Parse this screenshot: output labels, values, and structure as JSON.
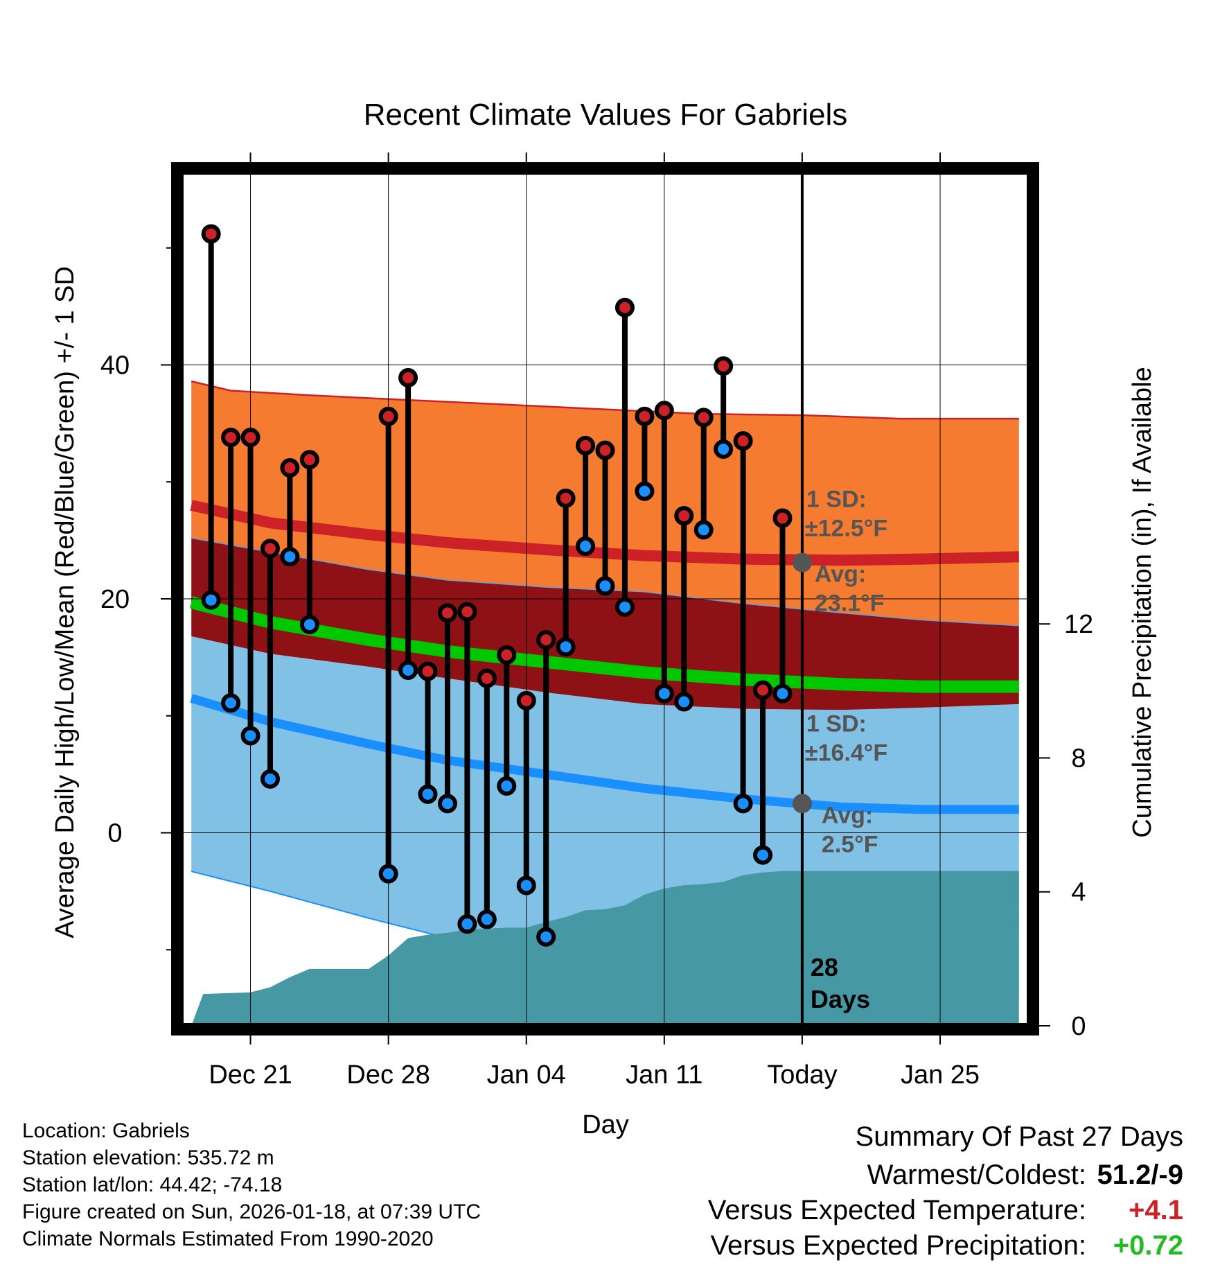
{
  "chart_data": {
    "type": "line",
    "title": "Recent Climate Values For Gabriels",
    "xlabel": "Day",
    "ylabel": "Average Daily High/Low/Mean (Red/Blue/Green) +/- 1 SD",
    "y2label": "Cumulative Precipitation (in), If Available",
    "xlim": [
      -3.5,
      39.5
    ],
    "ylim": [
      -16.5,
      56.5
    ],
    "y2lim": [
      0,
      25.5
    ],
    "x_ticks": [
      {
        "x": 0,
        "label": "Dec 21"
      },
      {
        "x": 7,
        "label": "Dec 28"
      },
      {
        "x": 14,
        "label": "Jan 04"
      },
      {
        "x": 21,
        "label": "Jan 11"
      },
      {
        "x": 28,
        "label": "Today"
      },
      {
        "x": 35,
        "label": "Jan 25"
      }
    ],
    "y_ticks": [
      {
        "v": 0,
        "label": "0"
      },
      {
        "v": 20,
        "label": "20"
      },
      {
        "v": 40,
        "label": "40"
      }
    ],
    "y_minor_ticks": [
      -10,
      10,
      30,
      50
    ],
    "y2_ticks": [
      {
        "v": 0,
        "label": "0"
      },
      {
        "v": 4,
        "label": "4"
      },
      {
        "v": 8,
        "label": "8"
      },
      {
        "v": 12,
        "label": "12"
      }
    ],
    "today_x": 28,
    "days_label_line1": "28",
    "days_label_line2": "Days",
    "normals_x": [
      -3,
      1,
      6,
      10,
      15,
      20,
      25,
      30,
      34,
      39
    ],
    "normal_high": [
      28.0,
      26.5,
      25.5,
      24.8,
      24.2,
      23.7,
      23.4,
      23.3,
      23.4,
      23.6
    ],
    "normal_high_sd": 12.5,
    "normal_low": [
      11.5,
      9.5,
      7.6,
      6.2,
      5.0,
      3.8,
      2.9,
      2.2,
      2.0,
      2.0
    ],
    "normal_low_sd": 16.4,
    "normal_mean": [
      19.7,
      18.0,
      16.5,
      15.5,
      14.6,
      13.7,
      13.1,
      12.7,
      12.5,
      12.5
    ],
    "high_upper_pts": [
      [
        -3,
        38.6
      ],
      [
        -1,
        37.8
      ],
      [
        3,
        37.4
      ],
      [
        8,
        37.0
      ],
      [
        13,
        36.6
      ],
      [
        18,
        36.2
      ],
      [
        23,
        35.8
      ],
      [
        28,
        35.7
      ],
      [
        33,
        35.4
      ],
      [
        39,
        35.4
      ]
    ],
    "high_lower_pts": [
      [
        -3,
        25.2
      ],
      [
        1,
        24.0
      ],
      [
        6,
        22.5
      ],
      [
        10,
        21.6
      ],
      [
        15,
        21.0
      ],
      [
        20,
        20.6
      ],
      [
        25,
        19.6
      ],
      [
        30,
        18.8
      ],
      [
        34,
        18.2
      ],
      [
        39,
        17.7
      ]
    ],
    "low_upper_pts": [
      [
        -3,
        16.8
      ],
      [
        1,
        15.3
      ],
      [
        6,
        14.2
      ],
      [
        10,
        13.2
      ],
      [
        15,
        12.0
      ],
      [
        20,
        11.0
      ],
      [
        25,
        10.6
      ],
      [
        30,
        10.5
      ],
      [
        34,
        10.7
      ],
      [
        39,
        11.0
      ]
    ],
    "low_lower_pts": [
      [
        -3,
        -3.3
      ],
      [
        1,
        -5.0
      ],
      [
        6,
        -7.3
      ],
      [
        10,
        -9.0
      ],
      [
        13,
        -10.2
      ],
      [
        16,
        -11.3
      ],
      [
        20,
        -12.3
      ],
      [
        25,
        -13.0
      ],
      [
        30,
        -13.5
      ],
      [
        34,
        -13.8
      ],
      [
        39,
        -14.0
      ]
    ],
    "precip_pts": [
      [
        -3,
        0
      ],
      [
        -2.4,
        0.95
      ],
      [
        0,
        1.0
      ],
      [
        1,
        1.15
      ],
      [
        2,
        1.45
      ],
      [
        3,
        1.7
      ],
      [
        4,
        1.7
      ],
      [
        5,
        1.7
      ],
      [
        6,
        1.7
      ],
      [
        7,
        2.1
      ],
      [
        8,
        2.62
      ],
      [
        9,
        2.72
      ],
      [
        10,
        2.78
      ],
      [
        11,
        2.88
      ],
      [
        12,
        2.9
      ],
      [
        13,
        2.93
      ],
      [
        14,
        2.93
      ],
      [
        15,
        3.1
      ],
      [
        16,
        3.25
      ],
      [
        17,
        3.45
      ],
      [
        18,
        3.48
      ],
      [
        19,
        3.6
      ],
      [
        20,
        3.92
      ],
      [
        21,
        4.1
      ],
      [
        22,
        4.2
      ],
      [
        23,
        4.23
      ],
      [
        24,
        4.3
      ],
      [
        25,
        4.5
      ],
      [
        26,
        4.58
      ],
      [
        27,
        4.62
      ],
      [
        28,
        4.62
      ],
      [
        39,
        4.62
      ]
    ],
    "series": [
      {
        "name": "Daily High",
        "color": "#cc2127",
        "x": [
          -2,
          -1,
          0,
          1,
          2,
          3,
          7,
          8,
          9,
          10,
          11,
          12,
          13,
          14,
          15,
          16,
          17,
          18,
          19,
          20,
          21,
          22,
          23,
          24,
          25,
          26,
          27
        ],
        "values": [
          51.2,
          33.8,
          33.8,
          24.3,
          31.2,
          31.9,
          35.6,
          38.9,
          13.8,
          18.8,
          18.9,
          13.2,
          15.2,
          11.3,
          16.5,
          28.6,
          33.1,
          32.7,
          44.9,
          35.6,
          36.1,
          27.1,
          35.5,
          39.9,
          33.5,
          12.2,
          26.9
        ]
      },
      {
        "name": "Daily Low",
        "color": "#1a8fff",
        "x": [
          -2,
          -1,
          0,
          1,
          2,
          3,
          7,
          8,
          9,
          10,
          11,
          12,
          13,
          14,
          15,
          16,
          17,
          18,
          19,
          20,
          21,
          22,
          23,
          24,
          25,
          26,
          27
        ],
        "values": [
          19.9,
          11.1,
          8.3,
          4.6,
          23.6,
          17.8,
          -3.5,
          13.9,
          3.3,
          2.5,
          -7.8,
          -7.4,
          4.0,
          -4.5,
          -8.9,
          15.9,
          24.5,
          21.1,
          19.3,
          29.2,
          11.9,
          11.2,
          25.9,
          32.8,
          2.5,
          -1.9,
          11.9
        ]
      }
    ],
    "annotations": {
      "high_sd_line1": "1 SD:",
      "high_sd_line2": "±12.5°F",
      "high_avg_line1": "Avg:",
      "high_avg_line2": "23.1°F",
      "low_sd_line1": "1 SD:",
      "low_sd_line2": "±16.4°F",
      "low_avg_line1": "Avg:",
      "low_avg_line2": "2.5°F",
      "high_avg_value": 23.1,
      "low_avg_value": 2.5
    },
    "colors": {
      "high_band": "#f47b30",
      "overlap_band": "#8e1115",
      "low_band": "#82c1e6",
      "mean_line": "#00c800",
      "high_line": "#cc2127",
      "low_line": "#1a8fff",
      "precip": "#4699a4",
      "annotation": "#555555"
    }
  },
  "footer": {
    "location": "Location: Gabriels",
    "elevation": "Station elevation: 535.72 m",
    "latlon": "Station lat/lon: 44.42; -74.18",
    "created": "Figure created on Sun, 2026-01-18, at 07:39 UTC",
    "normals": "Climate Normals Estimated From 1990-2020"
  },
  "summary": {
    "title": "Summary Of Past 27 Days",
    "warmest_label": "Warmest/Coldest:",
    "warmest_value": "51.2/-9",
    "temp_label": "Versus Expected Temperature:",
    "temp_value": "+4.1",
    "temp_color": "#cc2127",
    "precip_label": "Versus Expected Precipitation:",
    "precip_value": "+0.72",
    "precip_color": "#22bb22"
  }
}
